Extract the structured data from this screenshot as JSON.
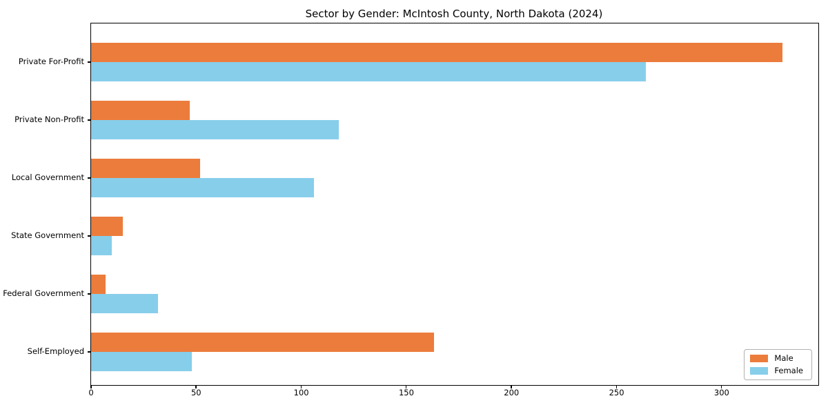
{
  "chart_data": {
    "type": "bar",
    "orientation": "horizontal",
    "title": "Sector by Gender: McIntosh County, North Dakota (2024)",
    "categories": [
      "Private For-Profit",
      "Private Non-Profit",
      "Local Government",
      "State Government",
      "Federal Government",
      "Self-Employed"
    ],
    "series": [
      {
        "name": "Male",
        "color": "#EC7C3C",
        "values": [
          329,
          47,
          52,
          15,
          7,
          163
        ]
      },
      {
        "name": "Female",
        "color": "#87CEEB",
        "values": [
          264,
          118,
          106,
          10,
          32,
          48
        ]
      }
    ],
    "xlim": [
      0,
      346
    ],
    "xticks": [
      0,
      50,
      100,
      150,
      200,
      250,
      300
    ],
    "xlabel": "",
    "ylabel": "",
    "grid": false,
    "legend_position": "lower right",
    "background_color": "#ffffff",
    "spine_color": "#000000"
  }
}
